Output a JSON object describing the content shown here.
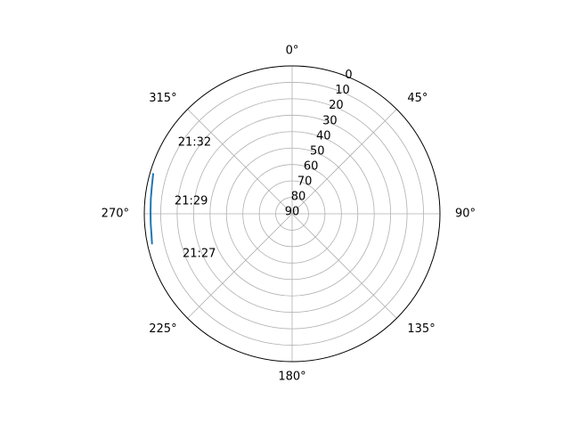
{
  "chart_data": {
    "type": "line",
    "projection": "polar",
    "theta_zero_location": "N",
    "theta_direction": "clockwise",
    "radial_axis_inverted": true,
    "rlim": [
      90,
      0
    ],
    "grid": true,
    "angle_tick_labels": [
      {
        "deg": 0,
        "label": "0°"
      },
      {
        "deg": 45,
        "label": "45°"
      },
      {
        "deg": 90,
        "label": "90°"
      },
      {
        "deg": 135,
        "label": "135°"
      },
      {
        "deg": 180,
        "label": "180°"
      },
      {
        "deg": 225,
        "label": "225°"
      },
      {
        "deg": 270,
        "label": "270°"
      },
      {
        "deg": 315,
        "label": "315°"
      }
    ],
    "radial_ticks": [
      {
        "value": 0,
        "label": "0"
      },
      {
        "value": 10,
        "label": "10"
      },
      {
        "value": 20,
        "label": "20"
      },
      {
        "value": 30,
        "label": "30"
      },
      {
        "value": 40,
        "label": "40"
      },
      {
        "value": 50,
        "label": "50"
      },
      {
        "value": 60,
        "label": "60"
      },
      {
        "value": 70,
        "label": "70"
      },
      {
        "value": 80,
        "label": "80"
      },
      {
        "value": 90,
        "label": "90"
      }
    ],
    "series": [
      {
        "color": "#1f77b4",
        "points": [
          {
            "azimuth": 286,
            "elevation": 2
          },
          {
            "azimuth": 281,
            "elevation": 3
          },
          {
            "azimuth": 276,
            "elevation": 3.5
          },
          {
            "azimuth": 271,
            "elevation": 3.8
          },
          {
            "azimuth": 266,
            "elevation": 3.7
          },
          {
            "azimuth": 262,
            "elevation": 3.5
          },
          {
            "azimuth": 258,
            "elevation": 2.8
          }
        ]
      }
    ],
    "annotations": [
      {
        "text": "21:32",
        "azimuth": 302,
        "elevation": 8
      },
      {
        "text": "21:29",
        "azimuth": 276,
        "elevation": 18
      },
      {
        "text": "21:27",
        "azimuth": 250,
        "elevation": 19
      }
    ]
  }
}
